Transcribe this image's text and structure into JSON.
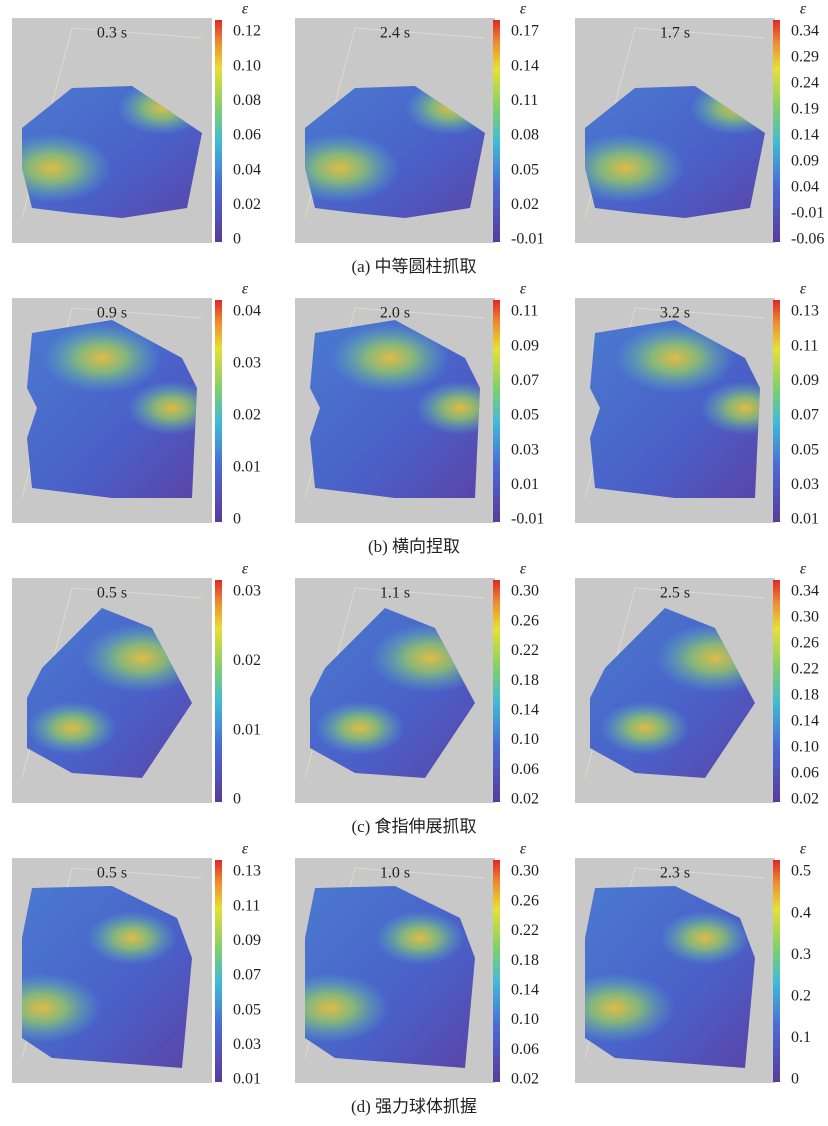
{
  "rows": [
    {
      "caption": "(a) 中等圆柱抓取",
      "panels": [
        {
          "time": "0.3 s",
          "symbol": "ε",
          "ticks": [
            "0.12",
            "0.10",
            "0.08",
            "0.06",
            "0.04",
            "0.02",
            "0"
          ]
        },
        {
          "time": "2.4 s",
          "symbol": "ε",
          "ticks": [
            "0.17",
            "0.14",
            "0.11",
            "0.08",
            "0.05",
            "0.02",
            "-0.01"
          ]
        },
        {
          "time": "1.7 s",
          "symbol": "ε",
          "ticks": [
            "0.34",
            "0.29",
            "0.24",
            "0.19",
            "0.14",
            "0.09",
            "0.04",
            "-0.01",
            "-0.06"
          ]
        }
      ]
    },
    {
      "caption": "(b) 横向捏取",
      "panels": [
        {
          "time": "0.9 s",
          "symbol": "ε",
          "ticks": [
            "0.04",
            "0.03",
            "0.02",
            "0.01",
            "0"
          ]
        },
        {
          "time": "2.0 s",
          "symbol": "ε",
          "ticks": [
            "0.11",
            "0.09",
            "0.07",
            "0.05",
            "0.03",
            "0.01",
            "-0.01"
          ]
        },
        {
          "time": "3.2 s",
          "symbol": "ε",
          "ticks": [
            "0.13",
            "0.11",
            "0.09",
            "0.07",
            "0.05",
            "0.03",
            "0.01"
          ]
        }
      ]
    },
    {
      "caption": "(c) 食指伸展抓取",
      "panels": [
        {
          "time": "0.5 s",
          "symbol": "ε",
          "ticks": [
            "0.03",
            "0.02",
            "0.01",
            "0"
          ]
        },
        {
          "time": "1.1 s",
          "symbol": "ε",
          "ticks": [
            "0.30",
            "0.26",
            "0.22",
            "0.18",
            "0.14",
            "0.10",
            "0.06",
            "0.02"
          ]
        },
        {
          "time": "2.5 s",
          "symbol": "ε",
          "ticks": [
            "0.34",
            "0.30",
            "0.26",
            "0.22",
            "0.18",
            "0.14",
            "0.10",
            "0.06",
            "0.02"
          ]
        }
      ]
    },
    {
      "caption": "(d) 强力球体抓握",
      "panels": [
        {
          "time": "0.5 s",
          "symbol": "ε",
          "ticks": [
            "0.13",
            "0.11",
            "0.09",
            "0.07",
            "0.05",
            "0.03",
            "0.01"
          ]
        },
        {
          "time": "1.0 s",
          "symbol": "ε",
          "ticks": [
            "0.30",
            "0.26",
            "0.22",
            "0.18",
            "0.14",
            "0.10",
            "0.06",
            "0.02"
          ]
        },
        {
          "time": "2.3 s",
          "symbol": "ε",
          "ticks": [
            "0.5",
            "0.4",
            "0.3",
            "0.2",
            "0.1",
            "0"
          ]
        }
      ]
    }
  ]
}
